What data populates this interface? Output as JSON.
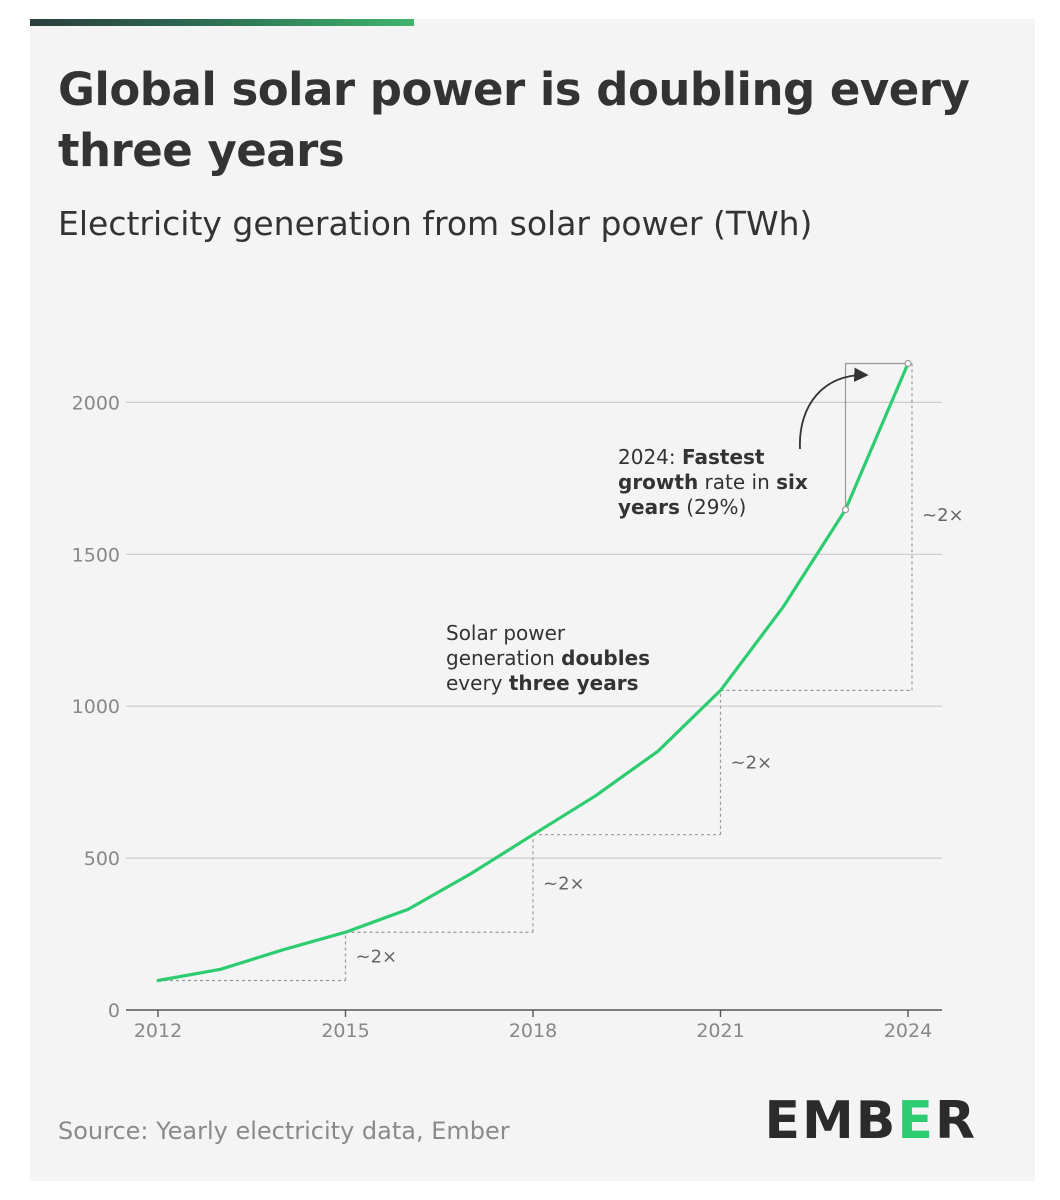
{
  "header": {
    "title": "Global solar power is doubling every three years",
    "subtitle": "Electricity generation from solar power (TWh)"
  },
  "footer": {
    "source": "Source: Yearly electricity data, Ember",
    "logo_text": "EMBER"
  },
  "colors": {
    "line": "#2ecc71",
    "accent_gradient": [
      "#2a3d3d",
      "#3fb56b"
    ],
    "background": "#f4f4f4",
    "text": "#333333",
    "grid": "#cccccc"
  },
  "chart_data": {
    "type": "line",
    "title": "Global solar power is doubling every three years",
    "ylabel": "Electricity generation from solar power (TWh)",
    "xlim": [
      2011.5,
      2024.6
    ],
    "ylim": [
      0,
      2100
    ],
    "x_ticks": [
      "2012",
      "2015",
      "2018",
      "2021",
      "2024"
    ],
    "y_ticks": [
      "0",
      "500",
      "1000",
      "1500",
      "2000"
    ],
    "grid": "horizontal",
    "series": [
      {
        "x": [
          2012,
          2013,
          2014,
          2015,
          2016,
          2017,
          2018,
          2019,
          2020,
          2021,
          2022,
          2023,
          2024
        ],
        "values": [
          97,
          134,
          198,
          256,
          331,
          448,
          577,
          705,
          852,
          1052,
          1326,
          1647,
          2128
        ]
      }
    ],
    "doubling_steps": [
      {
        "from": 2012,
        "to": 2015,
        "label": "~2×"
      },
      {
        "from": 2015,
        "to": 2018,
        "label": "~2×"
      },
      {
        "from": 2018,
        "to": 2021,
        "label": "~2×"
      },
      {
        "from": 2021,
        "to": 2024,
        "label": "~2×"
      }
    ],
    "annotations": [
      {
        "id": "doubling",
        "lines": [
          [
            {
              "t": "Solar power",
              "b": false
            }
          ],
          [
            {
              "t": "generation ",
              "b": false
            },
            {
              "t": "doubles",
              "b": true
            }
          ],
          [
            {
              "t": "every ",
              "b": false
            },
            {
              "t": "three years",
              "b": true
            }
          ]
        ]
      },
      {
        "id": "fastest",
        "lines": [
          [
            {
              "t": "2024: ",
              "b": false
            },
            {
              "t": "Fastest",
              "b": true
            }
          ],
          [
            {
              "t": "growth",
              "b": true
            },
            {
              "t": " rate in ",
              "b": false
            },
            {
              "t": "six",
              "b": true
            }
          ],
          [
            {
              "t": "years",
              "b": true
            },
            {
              "t": " (29%)",
              "b": false
            }
          ]
        ]
      }
    ]
  }
}
